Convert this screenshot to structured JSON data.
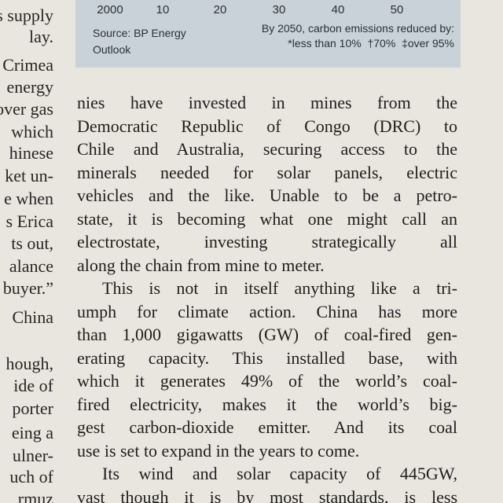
{
  "chart_fragment": {
    "ticks": [
      "2000",
      "10",
      "20",
      "30",
      "40",
      "50"
    ],
    "source": [
      "Source: BP Energy",
      "Outlook"
    ],
    "note": [
      "By 2050, carbon emissions reduced by:",
      "*less than 10%",
      "†70%",
      "‡over 95%"
    ]
  },
  "left_column": [
    "s supply",
    "lay.",
    "Crimea",
    "energy",
    "over gas",
    "which",
    "hinese",
    "ket un-",
    "e when",
    "s Erica",
    "ts out,",
    "alance",
    "buyer.”",
    "China",
    "hough,",
    "ide of",
    "porter",
    "eing a",
    "ulner-",
    "uch of",
    "rmuz"
  ],
  "paragraphs": [
    [
      "nies have invested in mines from the",
      "Democratic Republic of Congo (DRC) to",
      "Chile and Australia, securing access to the",
      "minerals needed for solar panels, electric",
      "vehicles and the like. Unable to be a petro-",
      "state, it is becoming what one might call an",
      "electrostate, investing strategically all",
      "along the chain from mine to meter."
    ],
    [
      "This is not in itself anything like a tri-",
      "umph for climate action. China has more",
      "than 1,000 gigawatts (GW) of coal-fired gen-",
      "erating capacity. This installed base, with",
      "which it generates 49% of the world’s coal-",
      "fired electricity, makes it the world’s big-",
      "gest carbon-dioxide emitter. And its coal",
      "use is set to expand in the years to come."
    ],
    [
      "Its wind and solar capacity of 445GW,",
      "vast though it is by most standards, is less"
    ]
  ]
}
